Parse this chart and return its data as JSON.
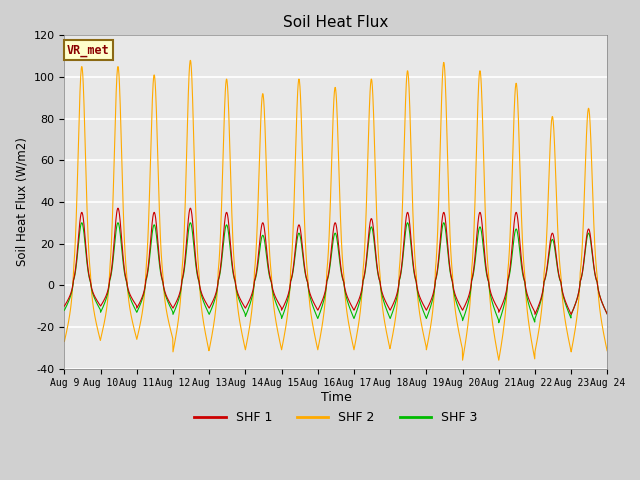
{
  "title": "Soil Heat Flux",
  "ylabel": "Soil Heat Flux (W/m2)",
  "xlabel": "Time",
  "ylim": [
    -40,
    120
  ],
  "yticks": [
    -40,
    -20,
    0,
    20,
    40,
    60,
    80,
    100,
    120
  ],
  "xtick_labels": [
    "Aug 9",
    "Aug 10",
    "Aug 11",
    "Aug 12",
    "Aug 13",
    "Aug 14",
    "Aug 15",
    "Aug 16",
    "Aug 17",
    "Aug 18",
    "Aug 19",
    "Aug 20",
    "Aug 21",
    "Aug 22",
    "Aug 23",
    "Aug 24"
  ],
  "n_days": 15,
  "legend_labels": [
    "SHF 1",
    "SHF 2",
    "SHF 3"
  ],
  "shf1_color": "#cc0000",
  "shf2_color": "#ffaa00",
  "shf3_color": "#00bb00",
  "annotation_text": "VR_met",
  "fig_facecolor": "#d0d0d0",
  "axes_facecolor": "#e8e8e8",
  "shf1_peaks": [
    35,
    37,
    35,
    37,
    35,
    30,
    29,
    30,
    32,
    35,
    35,
    35,
    35,
    25,
    27
  ],
  "shf1_troughs": [
    -10,
    -10,
    -11,
    -11,
    -11,
    -11,
    -12,
    -12,
    -12,
    -12,
    -12,
    -12,
    -13,
    -14,
    -14
  ],
  "shf2_peaks": [
    105,
    105,
    101,
    108,
    99,
    92,
    99,
    95,
    99,
    103,
    107,
    103,
    97,
    81,
    85
  ],
  "shf2_troughs": [
    -27,
    -26,
    -26,
    -32,
    -31,
    -31,
    -31,
    -31,
    -31,
    -30,
    -31,
    -36,
    -36,
    -32,
    -32
  ],
  "shf3_peaks": [
    30,
    30,
    29,
    30,
    29,
    24,
    25,
    25,
    28,
    30,
    30,
    28,
    27,
    22,
    25
  ],
  "shf3_troughs": [
    -12,
    -13,
    -13,
    -14,
    -14,
    -15,
    -16,
    -16,
    -16,
    -16,
    -16,
    -17,
    -18,
    -16,
    -14
  ]
}
